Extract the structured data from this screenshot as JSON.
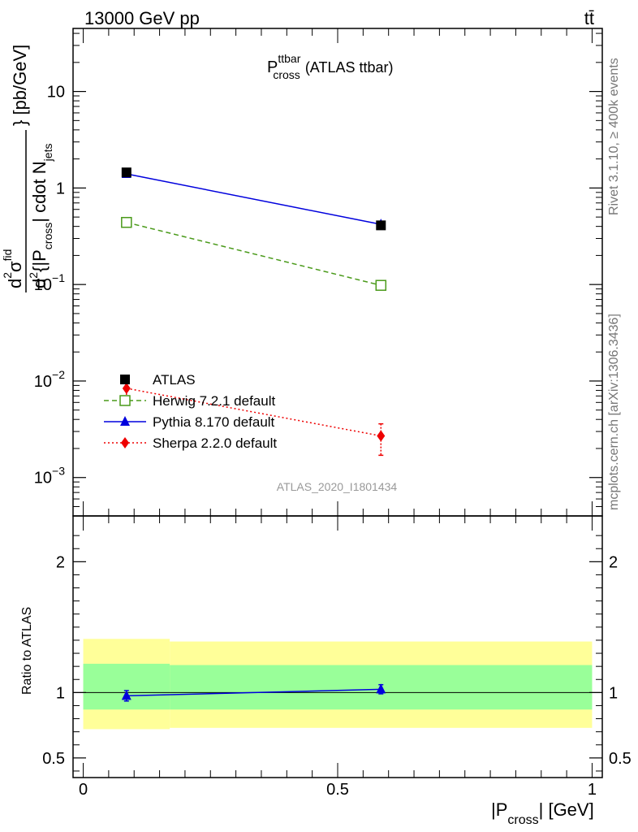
{
  "header": {
    "left": "13000 GeV pp",
    "right": "tt̄"
  },
  "side_text": {
    "rivet": "Rivet 3.1.10, ≥ 400k events",
    "mcplots": "mcplots.cern.ch [arXiv:1306.3436]"
  },
  "plot_title": {
    "main": "P",
    "sup": "ttbar",
    "sub": "cross",
    "suffix": "(ATLAS ttbar)"
  },
  "analysis_tag": "ATLAS_2020_I1801434",
  "y_label": {
    "num_d": "d",
    "num_sup": "2",
    "num_sigma": "σ",
    "num_sigma_sup": "fid",
    "den_d": "d",
    "den_sup": "2",
    "den_text": "{|P",
    "den_sub": "cross",
    "den_text2": "| cdot N",
    "den_sub2": "jets",
    "unit": "} [pb/GeV]"
  },
  "ratio_ylabel": "Ratio to ATLAS",
  "x_label": {
    "main": "|P",
    "sub": "cross",
    "suffix": "| [GeV]"
  },
  "legend": [
    {
      "label": "ATLAS",
      "color": "#000000",
      "marker": "square-filled",
      "line": "none"
    },
    {
      "label": "Herwig 7.2.1 default",
      "color": "#4a9a1a",
      "marker": "square-open",
      "line": "dashed"
    },
    {
      "label": "Pythia 8.170 default",
      "color": "#0000dd",
      "marker": "triangle",
      "line": "solid"
    },
    {
      "label": "Sherpa 2.2.0 default",
      "color": "#ee0000",
      "marker": "diamond",
      "line": "dotted"
    }
  ],
  "chart_data": {
    "type": "line",
    "xlim": [
      -0.02,
      1.02
    ],
    "ylim": [
      0.0004,
      45
    ],
    "yscale": "log",
    "x_ticks": [
      {
        "v": 0,
        "label": "0"
      },
      {
        "v": 0.5,
        "label": "0.5"
      },
      {
        "v": 1,
        "label": "1"
      }
    ],
    "y_ticks": [
      {
        "v": 0.001,
        "base": "10",
        "exp": "−3"
      },
      {
        "v": 0.01,
        "base": "10",
        "exp": "−2"
      },
      {
        "v": 0.1,
        "base": "10",
        "exp": "−1"
      },
      {
        "v": 1,
        "base": "1",
        "exp": ""
      },
      {
        "v": 10,
        "base": "10",
        "exp": ""
      }
    ],
    "bins": [
      [
        0,
        0.17
      ],
      [
        0.17,
        1
      ]
    ],
    "x": [
      0.085,
      0.585
    ],
    "series": [
      {
        "name": "ATLAS",
        "values": [
          1.45,
          0.41
        ]
      },
      {
        "name": "Herwig 7.2.1 default",
        "values": [
          0.44,
          0.098
        ]
      },
      {
        "name": "Pythia 8.170 default",
        "values": [
          1.4,
          0.42
        ]
      },
      {
        "name": "Sherpa 2.2.0 default",
        "values": [
          0.0084,
          0.0027
        ],
        "err_low": [
          0.0059,
          0.0017
        ],
        "err_high": [
          0.011,
          0.0036
        ]
      }
    ],
    "ratio": {
      "ylim": [
        0.35,
        2.35
      ],
      "y_ticks": [
        {
          "v": 0.5,
          "label": "0.5"
        },
        {
          "v": 1,
          "label": "1"
        },
        {
          "v": 2,
          "label": "2"
        }
      ],
      "bands": [
        {
          "x0": 0,
          "x1": 0.17,
          "yellow": [
            0.72,
            1.41
          ],
          "green": [
            0.87,
            1.22
          ]
        },
        {
          "x0": 0.17,
          "x1": 1,
          "yellow": [
            0.73,
            1.39
          ],
          "green": [
            0.87,
            1.21
          ]
        }
      ],
      "series": [
        {
          "name": "Pythia 8.170 default",
          "values": [
            0.975,
            1.025
          ],
          "err_low": [
            0.935,
            0.99
          ],
          "err_high": [
            1.015,
            1.06
          ]
        }
      ]
    }
  }
}
